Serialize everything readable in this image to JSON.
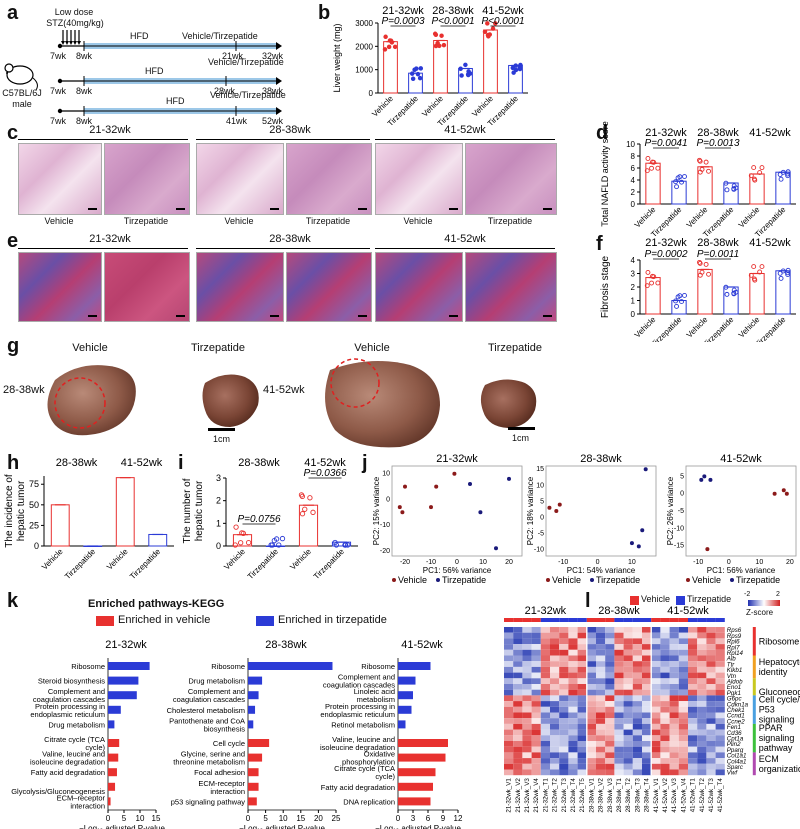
{
  "panel_labels": [
    "a",
    "b",
    "c",
    "d",
    "e",
    "f",
    "g",
    "h",
    "i",
    "j",
    "k",
    "l"
  ],
  "panel_a": {
    "dose_label": "Low dose",
    "stz_label": "STZ(40mg/kg)",
    "mouse_label": "C57BL/6J male",
    "row1": {
      "diet": "HFD",
      "treat": "Vehicle/Tirzepatide",
      "start": "7wk",
      "mid": "8wk",
      "t1": "21wk",
      "t2": "32wk"
    },
    "row2": {
      "diet": "HFD",
      "treat": "Vehicle/Tirzepatide",
      "start": "7wk",
      "mid": "8wk",
      "t1": "28wk",
      "t2": "38wk"
    },
    "row3": {
      "diet": "HFD",
      "treat": "Vehicle/Tirzepatide",
      "start": "7wk",
      "mid": "8wk",
      "t1": "41wk",
      "t2": "52wk"
    }
  },
  "groups": [
    "21-32wk",
    "28-38wk",
    "41-52wk"
  ],
  "group_labels": [
    "Vehicle",
    "Tirzepatide"
  ],
  "colors": {
    "vehicle": "#e8312f",
    "tirzepatide": "#2b3bd6"
  },
  "panel_b": {
    "ylabel": "Liver weight (mg)",
    "pvals": [
      "P=0.0003",
      "P<0.0001",
      "P<0.0001"
    ]
  },
  "panel_c": {
    "groups": [
      "21-32wk",
      "28-38wk",
      "41-52wk"
    ]
  },
  "panel_d": {
    "ylabel": "Total NAFLD activity score",
    "pvals": [
      "P=0.0041",
      "P=0.0013"
    ]
  },
  "panel_f": {
    "ylabel": "Fibrosis stage",
    "pvals": [
      "P=0.0002",
      "P=0.0011"
    ]
  },
  "panel_g": {
    "labels": [
      "Vehicle",
      "Tirzepatide",
      "Vehicle",
      "Tirzepatide"
    ],
    "groups": [
      "28-38wk",
      "41-52wk"
    ],
    "scale": "1cm"
  },
  "panel_h": {
    "ylabel1": "The incidence of",
    "ylabel2": "hepatic tumor",
    "groups": [
      "28-38wk",
      "41-52wk"
    ]
  },
  "panel_i": {
    "ylabel1": "The number of",
    "ylabel2": "hepatic tumor",
    "groups": [
      "28-38wk",
      "41-52wk"
    ],
    "pvals": [
      "P=0.0756",
      "P=0.0366"
    ]
  },
  "panel_j": {
    "titles": [
      "21-32wk",
      "28-38wk",
      "41-52wk"
    ],
    "xlabels": [
      "PC1: 56% variance",
      "PC1: 54% variance",
      "PC1: 56% variance"
    ],
    "ylabels": [
      "PC2: 15% variance",
      "PC2: 18% variance",
      "PC2: 26% variance"
    ],
    "legend": [
      "Vehicle",
      "Tirzepatide"
    ]
  },
  "panel_k": {
    "title": "Enriched pathways-KEGG",
    "legend": [
      "Enriched in vehicle",
      "Enriched in tirzepatide"
    ],
    "xlabel": "−Log₁₀ adjusted P-value",
    "titles": [
      "21-32wk",
      "28-38wk",
      "41-52wk"
    ]
  },
  "panel_l": {
    "legend": [
      "Vehicle",
      "Tirzepatide"
    ],
    "zscore": "Z-score",
    "zticks": [
      "-2",
      "2"
    ],
    "groups": [
      "21-32wk",
      "28-38wk",
      "41-52wk"
    ],
    "id_label": "ID",
    "genes": [
      "Rps6",
      "Rps9",
      "Rpl6",
      "Rpl7",
      "Rpl14",
      "Alb",
      "Ttr",
      "Klkb1",
      "Vtn",
      "Aldob",
      "Eno1",
      "Pgk1",
      "G6pc",
      "Cdkn1a",
      "Chek1",
      "Ccnd1",
      "Ccne2",
      "Fen1",
      "Cd36",
      "Cpt1a",
      "Plin2",
      "Pparg",
      "Col1a1",
      "Col4a1",
      "Sparc",
      "Vwf"
    ],
    "modules": [
      "Ribosome",
      "Hepatocyte identity",
      "Gluconeogenesis",
      "Cell cycle/ P53 signaling",
      "PPAR signaling pathway",
      "ECM organization"
    ],
    "module_colors": [
      "#e8312f",
      "#f0a020",
      "#c8c820",
      "#4aa0e0",
      "#3cc03c",
      "#b04ab0"
    ],
    "samples": [
      "21-32wk_V1",
      "21-32wk_V2",
      "21-32wk_V3",
      "21-32wk_V4",
      "21-32wk_T1",
      "21-32wk_T2",
      "21-32wk_T3",
      "21-32wk_T4",
      "21-32wk_T5",
      "28-38wk_V1",
      "28-38wk_V2",
      "28-38wk_V3",
      "28-38wk_T1",
      "28-38wk_T2",
      "28-38wk_T3",
      "28-38wk_T4",
      "41-52wk_V1",
      "41-52wk_V2",
      "41-52wk_V3",
      "41-52wk_V4",
      "41-52wk_T1",
      "41-52wk_T2",
      "41-52wk_T3",
      "41-52wk_T4"
    ]
  },
  "chart_data": [
    {
      "id": "b",
      "type": "bar",
      "title": "",
      "ylabel": "Liver weight (mg)",
      "ylim": [
        0,
        3000
      ],
      "yticks": [
        0,
        1000,
        2000,
        3000
      ],
      "categories": [
        "21-32wk Vehicle",
        "21-32wk Tirzepatide",
        "28-38wk Vehicle",
        "28-38wk Tirzepatide",
        "41-52wk Vehicle",
        "41-52wk Tirzepatide"
      ],
      "values": [
        2200,
        850,
        2250,
        1050,
        2700,
        1180
      ]
    },
    {
      "id": "d",
      "type": "bar",
      "ylabel": "Total NAFLD activity score",
      "ylim": [
        0,
        10
      ],
      "yticks": [
        0,
        2,
        4,
        6,
        8,
        10
      ],
      "categories": [
        "21-32wk Vehicle",
        "21-32wk Tirzepatide",
        "28-38wk Vehicle",
        "28-38wk Tirzepatide",
        "41-52wk Vehicle",
        "41-52wk Tirzepatide"
      ],
      "values": [
        6.8,
        3.8,
        6.2,
        3.5,
        5.0,
        5.3
      ]
    },
    {
      "id": "f",
      "type": "bar",
      "ylabel": "Fibrosis stage",
      "ylim": [
        0,
        4
      ],
      "yticks": [
        0,
        1,
        2,
        3,
        4
      ],
      "categories": [
        "21-32wk Vehicle",
        "21-32wk Tirzepatide",
        "28-38wk Vehicle",
        "28-38wk Tirzepatide",
        "41-52wk Vehicle",
        "41-52wk Tirzepatide"
      ],
      "values": [
        2.7,
        1.0,
        3.3,
        2.0,
        3.0,
        3.2
      ]
    },
    {
      "id": "h",
      "type": "bar",
      "ylim": [
        0,
        85
      ],
      "yticks": [
        0,
        25,
        50,
        75
      ],
      "categories": [
        "28-38wk Vehicle",
        "28-38wk Tirzepatide",
        "41-52wk Vehicle",
        "41-52wk Tirzepatide"
      ],
      "values": [
        50,
        0,
        83,
        14
      ]
    },
    {
      "id": "i",
      "type": "bar",
      "ylim": [
        0,
        3
      ],
      "yticks": [
        0,
        1,
        2,
        3
      ],
      "categories": [
        "28-38wk Vehicle",
        "28-38wk Tirzepatide",
        "41-52wk Vehicle",
        "41-52wk Tirzepatide"
      ],
      "values": [
        0.5,
        0,
        1.8,
        0.17
      ]
    },
    {
      "id": "j1",
      "type": "scatter",
      "xlabel": "PC1: 56% variance",
      "ylabel": "PC2: 15% variance",
      "xlim": [
        -25,
        25
      ],
      "ylim": [
        -22,
        13
      ],
      "xticks": [
        -20,
        -10,
        0,
        10,
        20
      ],
      "yticks": [
        -20,
        -10,
        0,
        10
      ],
      "series": [
        {
          "name": "Vehicle",
          "x": [
            -22,
            -21,
            -20,
            -8,
            -1,
            -10
          ],
          "y": [
            -3,
            -5,
            5,
            5,
            10,
            -3
          ]
        },
        {
          "name": "Tirzepatide",
          "x": [
            5,
            9,
            15,
            20
          ],
          "y": [
            6,
            -5,
            -19,
            8
          ]
        }
      ]
    },
    {
      "id": "j2",
      "type": "scatter",
      "xlabel": "PC1: 54% variance",
      "ylabel": "PC2: 18% variance",
      "xlim": [
        -15,
        17
      ],
      "ylim": [
        -12,
        16
      ],
      "xticks": [
        -10,
        0,
        10
      ],
      "yticks": [
        -10,
        -5,
        0,
        5,
        10,
        15
      ],
      "series": [
        {
          "name": "Vehicle",
          "x": [
            -14,
            -12,
            -11
          ],
          "y": [
            3,
            2,
            4
          ]
        },
        {
          "name": "Tirzepatide",
          "x": [
            10,
            12,
            13,
            14
          ],
          "y": [
            -8,
            -9,
            -4,
            15
          ]
        }
      ]
    },
    {
      "id": "j3",
      "type": "scatter",
      "xlabel": "PC1: 56% variance",
      "ylabel": "PC2: 26% variance",
      "xlim": [
        -14,
        22
      ],
      "ylim": [
        -18,
        8
      ],
      "xticks": [
        -10,
        0,
        10,
        20
      ],
      "yticks": [
        -15,
        -10,
        -5,
        0,
        5
      ],
      "series": [
        {
          "name": "Vehicle",
          "x": [
            -7,
            15,
            18,
            19
          ],
          "y": [
            -16,
            0,
            1,
            0
          ]
        },
        {
          "name": "Tirzepatide",
          "x": [
            -9,
            -8,
            -6
          ],
          "y": [
            4,
            5,
            4
          ]
        }
      ]
    },
    {
      "id": "k1",
      "type": "bar",
      "title": "21-32wk",
      "xlim": [
        0,
        15
      ],
      "xticks": [
        0,
        5,
        10,
        15
      ],
      "categories": [
        "Ribosome",
        "Steroid biosynthesis",
        "Complement and coagulation cascades",
        "Protein processing in endoplasmic reticulum",
        "Drug metabolism",
        "Citrate cycle (TCA cycle)",
        "Valine, leucine and isoleucine degradation",
        "Fatty acid degradation",
        "Glycolysis/Gluconeogenesis",
        "ECM–receptor interaction"
      ],
      "values": [
        13,
        9.5,
        9,
        4,
        2,
        3.5,
        3.2,
        2.8,
        2.2,
        0.8
      ],
      "enriched_in": [
        "tirzepatide",
        "tirzepatide",
        "tirzepatide",
        "tirzepatide",
        "tirzepatide",
        "vehicle",
        "vehicle",
        "vehicle",
        "vehicle",
        "vehicle"
      ]
    },
    {
      "id": "k2",
      "type": "bar",
      "title": "28-38wk",
      "xlim": [
        0,
        25
      ],
      "xticks": [
        0,
        5,
        10,
        15,
        20,
        25
      ],
      "categories": [
        "Ribosome",
        "Drug metabolism",
        "Complement and coagulation cascades",
        "Cholesterol metabolism",
        "Pantothenate and CoA biosynthesis",
        "Cell cycle",
        "Glycine, serine and threonine metabolism",
        "Focal adhesion",
        "ECM-receptor interaction",
        "p53 signaling pathway"
      ],
      "values": [
        24,
        4,
        3,
        2,
        1.5,
        6,
        4,
        3,
        3,
        2.5
      ],
      "enriched_in": [
        "tirzepatide",
        "tirzepatide",
        "tirzepatide",
        "tirzepatide",
        "tirzepatide",
        "vehicle",
        "vehicle",
        "vehicle",
        "vehicle",
        "vehicle"
      ]
    },
    {
      "id": "k3",
      "type": "bar",
      "title": "41-52wk",
      "xlim": [
        0,
        12
      ],
      "xticks": [
        0,
        3,
        6,
        9,
        12
      ],
      "categories": [
        "Ribosome",
        "Complement and coagulation cascades",
        "Linoleic acid metabolism",
        "Protein processing in endoplasmic reticulum",
        "Retinol metabolism",
        "Valine, leucine and isoleucine degradation",
        "Oxidative phosphorylation",
        "Citrate cycle (TCA cycle)",
        "Fatty acid degradation",
        "DNA replication"
      ],
      "values": [
        6.5,
        3.5,
        3.0,
        2.7,
        1.5,
        10,
        9.5,
        7.5,
        7,
        6.5
      ],
      "enriched_in": [
        "tirzepatide",
        "tirzepatide",
        "tirzepatide",
        "tirzepatide",
        "tirzepatide",
        "vehicle",
        "vehicle",
        "vehicle",
        "vehicle",
        "vehicle"
      ]
    }
  ]
}
